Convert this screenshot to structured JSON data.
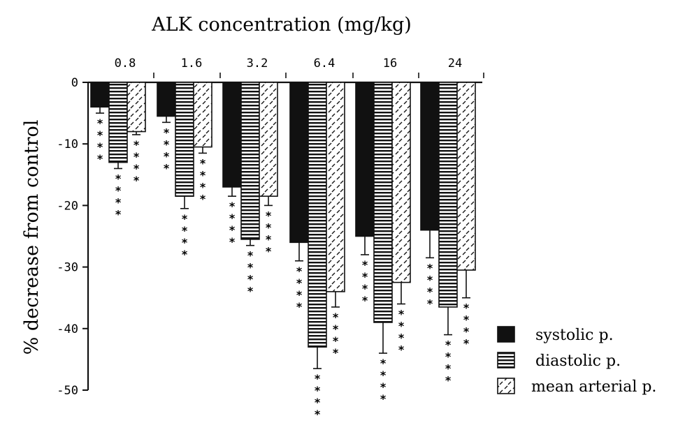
{
  "chart_data": {
    "type": "bar",
    "title": "ALK concentration  (mg/kg)",
    "xlabel": "",
    "ylabel": "% decrease from control",
    "categories": [
      "0.8",
      "1.6",
      "3.2",
      "6.4",
      "16",
      "24"
    ],
    "ylim": [
      -50,
      0
    ],
    "yticks": [
      0,
      -10,
      -20,
      -30,
      -40,
      -50
    ],
    "ytick_labels": [
      "0",
      "-10",
      "-20",
      "-30",
      "-40",
      "-50"
    ],
    "grid": false,
    "legend_placement": "bottom-right",
    "series": [
      {
        "name": "systolic p.",
        "pattern": "solid",
        "values": [
          -4,
          -5.5,
          -17,
          -26,
          -25,
          -24
        ],
        "errors": [
          1,
          1,
          1.5,
          3,
          3,
          4.5
        ],
        "significance": [
          "****",
          "****",
          "****",
          "****",
          "****",
          "****"
        ]
      },
      {
        "name": "diastolic p.",
        "pattern": "horizontal-stripes",
        "values": [
          -13,
          -18.5,
          -25.5,
          -43,
          -39,
          -36.5
        ],
        "errors": [
          1,
          2,
          1,
          3.5,
          5,
          4.5
        ],
        "significance": [
          "****",
          "****",
          "****",
          "****",
          "****",
          "****"
        ]
      },
      {
        "name": "mean arterial p.",
        "pattern": "dashed-diagonal",
        "values": [
          -8,
          -10.5,
          -18.5,
          -34,
          -32.5,
          -30.5
        ],
        "errors": [
          0.5,
          1,
          1.5,
          2.5,
          3.5,
          4.5
        ],
        "significance": [
          "****",
          "****",
          "****",
          "****",
          "****",
          "****"
        ]
      }
    ]
  }
}
